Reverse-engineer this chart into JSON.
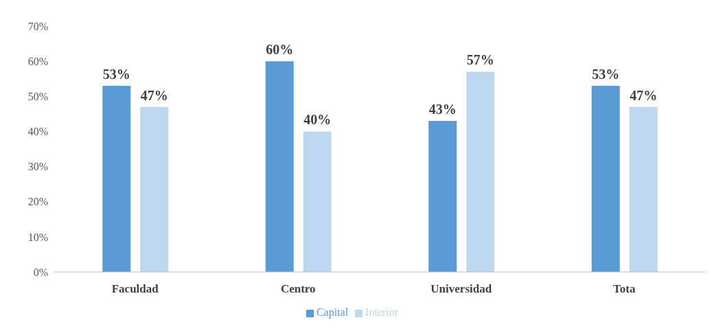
{
  "chart_data": {
    "type": "bar",
    "categories": [
      "Faculdad",
      "Centro",
      "Universidad",
      "Tota"
    ],
    "series": [
      {
        "name": "Capital",
        "color": "#5b9bd5",
        "values": [
          53,
          60,
          43,
          53
        ],
        "value_labels": [
          "53%",
          "60%",
          "43%",
          "53%"
        ]
      },
      {
        "name": "Interior",
        "color": "#bdd7ee",
        "values": [
          47,
          40,
          57,
          47
        ],
        "value_labels": [
          "47%",
          "40%",
          "57%",
          "47%"
        ]
      }
    ],
    "ylim": [
      0,
      70
    ],
    "yticks": [
      {
        "value": 0,
        "label": "0%"
      },
      {
        "value": 10,
        "label": "10%"
      },
      {
        "value": 20,
        "label": "20%"
      },
      {
        "value": 30,
        "label": "30%"
      },
      {
        "value": 40,
        "label": "40%"
      },
      {
        "value": 50,
        "label": "50%"
      },
      {
        "value": 60,
        "label": "60%"
      },
      {
        "value": 70,
        "label": "70%"
      }
    ],
    "grid": false,
    "legend": "bottom"
  }
}
